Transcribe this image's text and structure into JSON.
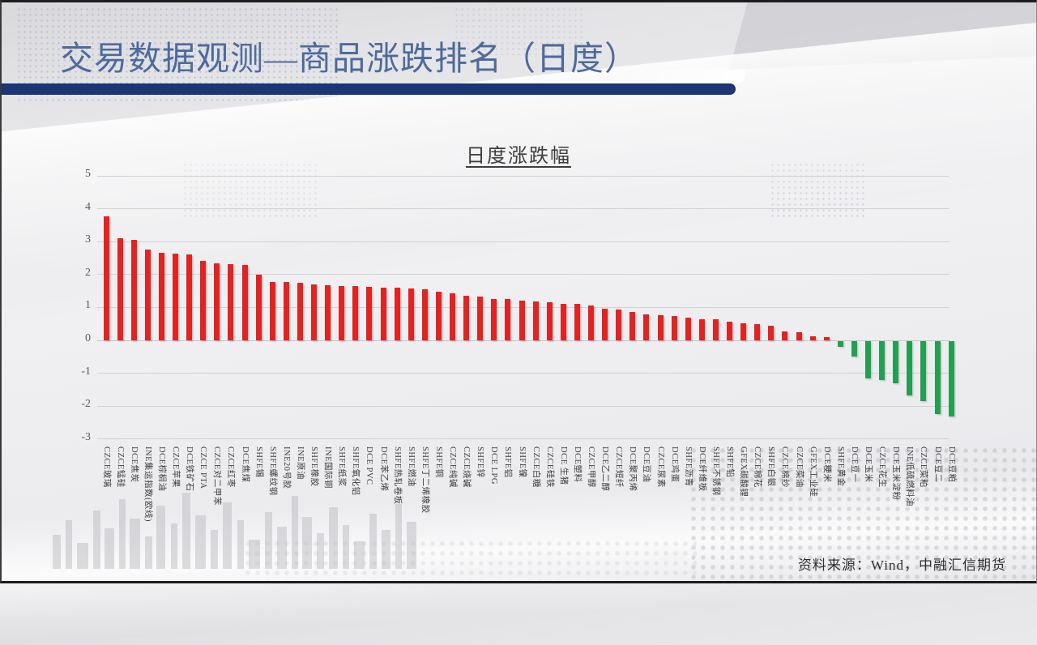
{
  "header": {
    "title": "交易数据观测—商品涨跌排名（日度）"
  },
  "footer": {
    "source": "资料来源：Wind，中融汇信期货"
  },
  "colors": {
    "positive_bar": "#e32222",
    "negative_bar": "#21a14f",
    "title_text": "#4d6a9d",
    "header_rule": "#1a3674"
  },
  "chart_data": {
    "type": "bar",
    "title": "日度涨跌幅",
    "xlabel": "",
    "ylabel": "",
    "ylim": [
      -3,
      5
    ],
    "yticks": [
      5,
      4,
      3,
      2,
      1,
      0,
      -1,
      -2,
      -3
    ],
    "grid": true,
    "legend": false,
    "categories": [
      "CZCE玻璃",
      "CZCE锰硅",
      "DCE焦炭",
      "INE集运指数(欧线)",
      "DCE棕榈油",
      "CZCE苹果",
      "DCE铁矿石",
      "CZCE PTA",
      "CZCE对二甲苯",
      "CZCE红枣",
      "DCE焦煤",
      "SHFE锡",
      "SHFE螺纹钢",
      "INE20号胶",
      "INE原油",
      "SHFE橡胶",
      "INE国际铜",
      "SHFE纸浆",
      "SHFE氧化铝",
      "DCE PVC",
      "DCE苯乙烯",
      "SHFE热轧卷板",
      "SHFE燃油",
      "SHFE丁二烯橡胶",
      "SHFE铜",
      "CZCE纯碱",
      "CZCE烧碱",
      "SHFE锌",
      "DCE LPG",
      "SHFE铝",
      "SHFE镍",
      "CZCE白糖",
      "CZCE硅铁",
      "DCE 生猪",
      "DCE塑料",
      "CZCE甲醇",
      "DCE乙二醇",
      "CZCE短纤",
      "DCE聚丙烯",
      "DCE豆油",
      "CZCE尿素",
      "DCE鸡蛋",
      "SHFE沥青",
      "DCE纤维板",
      "SHFE不锈钢",
      "SHFE铅",
      "GFEX碳酸锂",
      "CZCE棉花",
      "SHFE白银",
      "CZCE棉纱",
      "CZCE菜油",
      "GFEX工业硅",
      "DCE粳米",
      "SHFE黄金",
      "DCE豆一",
      "DCE玉米",
      "CZCE花生",
      "DCE玉米淀粉",
      "INE低硫燃料油",
      "CZCE菜粕",
      "DCE豆二",
      "DCE豆粕"
    ],
    "values": [
      3.78,
      3.1,
      3.06,
      2.76,
      2.66,
      2.63,
      2.62,
      2.41,
      2.34,
      2.31,
      2.28,
      1.99,
      1.78,
      1.77,
      1.76,
      1.69,
      1.68,
      1.66,
      1.65,
      1.62,
      1.61,
      1.6,
      1.58,
      1.55,
      1.47,
      1.43,
      1.35,
      1.34,
      1.26,
      1.25,
      1.21,
      1.18,
      1.16,
      1.12,
      1.1,
      1.06,
      0.97,
      0.94,
      0.87,
      0.78,
      0.76,
      0.74,
      0.7,
      0.65,
      0.63,
      0.57,
      0.52,
      0.5,
      0.45,
      0.28,
      0.24,
      0.13,
      0.11,
      -0.18,
      -0.46,
      -1.14,
      -1.18,
      -1.28,
      -1.65,
      -1.82,
      -2.21,
      -2.3
    ]
  }
}
